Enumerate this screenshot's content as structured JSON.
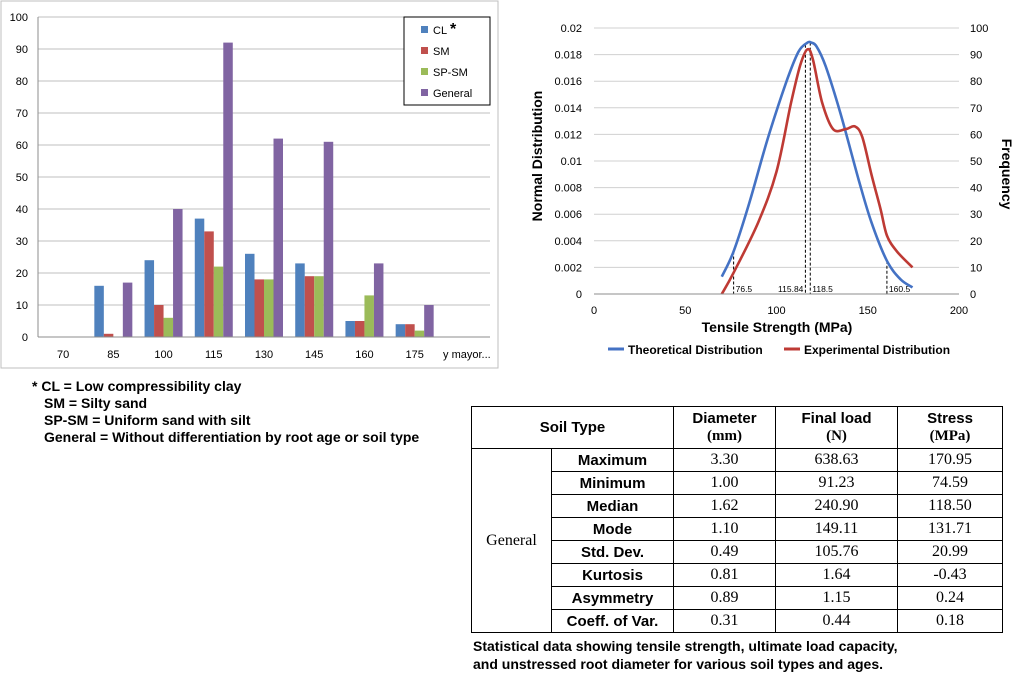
{
  "chart_data": [
    {
      "type": "bar",
      "categories": [
        "70",
        "85",
        "100",
        "115",
        "130",
        "145",
        "160",
        "175",
        "y mayor..."
      ],
      "series": [
        {
          "name": "CL",
          "color": "#4f81bd",
          "values": [
            0,
            16,
            24,
            37,
            26,
            23,
            5,
            4,
            0
          ]
        },
        {
          "name": "SM",
          "color": "#c0504d",
          "values": [
            0,
            1,
            10,
            33,
            18,
            19,
            5,
            4,
            0
          ]
        },
        {
          "name": "SP-SM",
          "color": "#9bbb59",
          "values": [
            0,
            0,
            6,
            22,
            18,
            19,
            13,
            2,
            0
          ]
        },
        {
          "name": "General",
          "color": "#8064a2",
          "values": [
            0,
            17,
            40,
            92,
            62,
            61,
            23,
            10,
            0
          ]
        }
      ],
      "ylim": [
        0,
        100
      ],
      "yticks": [
        "0",
        "10",
        "20",
        "30",
        "40",
        "50",
        "60",
        "70",
        "80",
        "90",
        "100"
      ],
      "legend_marker": "*",
      "grid": true,
      "legend": "top-right"
    },
    {
      "type": "line",
      "xlabel": "Tensile Strength (MPa)",
      "ylabel": "Normal Distribution",
      "y2label": "Frequency",
      "xlim": [
        0,
        200
      ],
      "xticks": [
        "0",
        "50",
        "100",
        "150",
        "200"
      ],
      "ylim": [
        0,
        0.02
      ],
      "yticks": [
        "0",
        "0.002",
        "0.004",
        "0.006",
        "0.008",
        "0.01",
        "0.012",
        "0.014",
        "0.016",
        "0.018",
        "0.02"
      ],
      "y2lim": [
        0,
        100
      ],
      "y2ticks": [
        "0",
        "10",
        "20",
        "30",
        "40",
        "50",
        "60",
        "70",
        "80",
        "90",
        "100"
      ],
      "series": [
        {
          "name": "Theoretical Distribution",
          "color": "#4472c4",
          "axis": "left",
          "x": [
            70,
            76.5,
            85,
            95,
            105,
            112,
            117,
            119,
            122,
            127,
            135,
            145,
            152,
            160.5,
            168,
            174.5
          ],
          "y": [
            0.0013,
            0.0032,
            0.0068,
            0.0116,
            0.0158,
            0.0182,
            0.0189,
            0.0189,
            0.0186,
            0.0171,
            0.0136,
            0.0086,
            0.0054,
            0.0025,
            0.0011,
            0.0005
          ]
        },
        {
          "name": "Experimental Distribution",
          "color": "#be3a34",
          "axis": "right",
          "x": [
            70,
            76.5,
            90,
            100,
            108,
            113,
            117,
            120,
            125,
            131,
            138,
            143,
            147,
            152,
            157,
            160.5,
            166,
            174.5
          ],
          "y": [
            0,
            8,
            27,
            46,
            72,
            86,
            92,
            88,
            72,
            62,
            62,
            63,
            59,
            45,
            32,
            22,
            16,
            10
          ]
        }
      ],
      "reference_lines": [
        {
          "x": 76.5,
          "label": "76.5"
        },
        {
          "x": 115.84,
          "label": "115.84"
        },
        {
          "x": 118.5,
          "label": "118.5"
        },
        {
          "x": 160.5,
          "label": "160.5"
        }
      ],
      "grid": true,
      "legend": "bottom"
    }
  ],
  "notes": [
    "* CL = Low compressibility clay",
    "SM = Silty sand",
    "SP-SM = Uniform sand with silt",
    "General = Without differentiation by root age or soil type"
  ],
  "table": {
    "headers": {
      "soil_type": "Soil Type",
      "diameter": "Diameter",
      "diameter_unit": "(mm)",
      "load": "Final load",
      "load_unit": "(N)",
      "stress": "Stress",
      "stress_unit": "(MPa)"
    },
    "group": "General",
    "rows": [
      {
        "label": "Maximum",
        "diameter": "3.30",
        "load": "638.63",
        "stress": "170.95"
      },
      {
        "label": "Minimum",
        "diameter": "1.00",
        "load": "91.23",
        "stress": "74.59"
      },
      {
        "label": "Median",
        "diameter": "1.62",
        "load": "240.90",
        "stress": "118.50"
      },
      {
        "label": "Mode",
        "diameter": "1.10",
        "load": "149.11",
        "stress": "131.71"
      },
      {
        "label": "Std. Dev.",
        "diameter": "0.49",
        "load": "105.76",
        "stress": "20.99"
      },
      {
        "label": "Kurtosis",
        "diameter": "0.81",
        "load": "1.64",
        "stress": "-0.43"
      },
      {
        "label": "Asymmetry",
        "diameter": "0.89",
        "load": "1.15",
        "stress": "0.24"
      },
      {
        "label": "Coeff. of Var.",
        "diameter": "0.31",
        "load": "0.44",
        "stress": "0.18"
      }
    ]
  },
  "caption": [
    "Statistical data showing tensile strength, ultimate load capacity,",
    "and unstressed root diameter for various soil types and ages."
  ]
}
